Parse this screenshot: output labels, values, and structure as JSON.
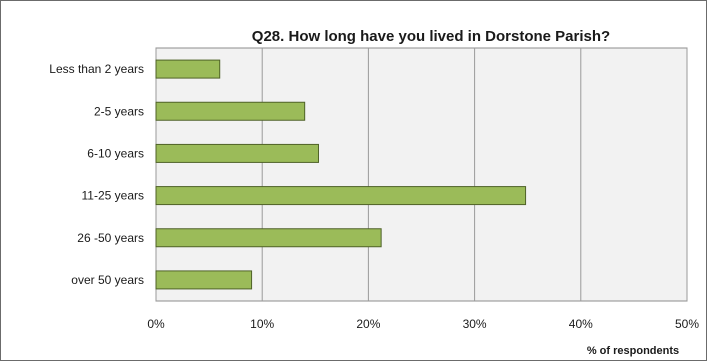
{
  "chart_data": {
    "type": "bar",
    "orientation": "horizontal",
    "title": "Q28. How long have you lived in Dorstone Parish?",
    "categories": [
      "Less than 2 years",
      "2-5 years",
      "6-10 years",
      "11-25 years",
      "26 -50 years",
      "over 50 years"
    ],
    "values": [
      6,
      14,
      15.3,
      34.8,
      21.2,
      9
    ],
    "xlabel": "% of respondents",
    "ylabel": "",
    "xlim": [
      0,
      50
    ],
    "xticks": [
      "0%",
      "10%",
      "20%",
      "30%",
      "40%",
      "50%"
    ],
    "grid": "vertical",
    "legend": "none",
    "colors": {
      "bar_fill": "#9bbb59",
      "bar_stroke": "#4f6228",
      "plot_background": "#f2f2f2",
      "gridline": "#9a9a9a"
    }
  }
}
